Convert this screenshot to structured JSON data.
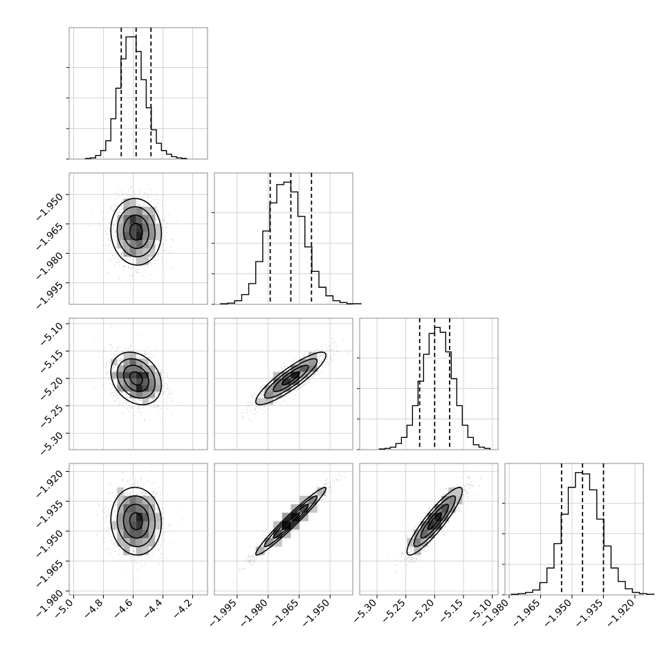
{
  "chart_data": {
    "type": "corner",
    "title": "",
    "colors": {
      "hist": "#000000",
      "contour": "#000000",
      "points": "#9a9a9a",
      "grid": "#c8c8c8"
    },
    "grid": true,
    "quantile_lines": "dashed",
    "parameters": [
      {
        "index": 0,
        "range": [
          -5.03,
          -4.1
        ],
        "ticks": [
          -5.0,
          -4.8,
          -4.6,
          -4.4,
          -4.2
        ],
        "tick_labels": [
          "−5.0",
          "−4.8",
          "−4.6",
          "−4.4",
          "−4.2"
        ],
        "mean": -4.58,
        "sd": 0.085,
        "quantiles": [
          -4.68,
          -4.58,
          -4.48
        ]
      },
      {
        "index": 1,
        "range": [
          -2.006,
          -1.939
        ],
        "ticks": [
          -1.995,
          -1.98,
          -1.965,
          -1.95
        ],
        "tick_labels": [
          "−1.995",
          "−1.980",
          "−1.965",
          "−1.950"
        ],
        "mean": -1.969,
        "sd": 0.0085,
        "quantiles": [
          -1.979,
          -1.969,
          -1.959
        ]
      },
      {
        "index": 2,
        "range": [
          -5.33,
          -5.09
        ],
        "ticks": [
          -5.3,
          -5.25,
          -5.2,
          -5.15,
          -5.1
        ],
        "tick_labels": [
          "−5.30",
          "−5.25",
          "−5.20",
          "−5.15",
          "−5.10"
        ],
        "mean": -5.2,
        "sd": 0.024,
        "quantiles": [
          -5.226,
          -5.2,
          -5.174
        ]
      },
      {
        "index": 3,
        "range": [
          -1.982,
          -1.916
        ],
        "ticks": [
          -1.98,
          -1.965,
          -1.95,
          -1.935,
          -1.92
        ],
        "tick_labels": [
          "−1.980",
          "−1.965",
          "−1.950",
          "−1.935",
          "−1.920"
        ],
        "mean": -1.945,
        "sd": 0.0085,
        "quantiles": [
          -1.955,
          -1.945,
          -1.935
        ]
      }
    ],
    "correlations": [
      {
        "pair": [
          1,
          0
        ],
        "r": -0.05
      },
      {
        "pair": [
          2,
          0
        ],
        "r": -0.25
      },
      {
        "pair": [
          2,
          1
        ],
        "r": 0.88
      },
      {
        "pair": [
          3,
          0
        ],
        "r": -0.05
      },
      {
        "pair": [
          3,
          1
        ],
        "r": 0.97
      },
      {
        "pair": [
          3,
          2
        ],
        "r": 0.9
      }
    ],
    "histograms": [
      {
        "param": 0,
        "counts": [
          0.5,
          1,
          3,
          7,
          15,
          33,
          58,
          82,
          100,
          100,
          88,
          65,
          42,
          24,
          13,
          7,
          4,
          2,
          1,
          0.5
        ]
      },
      {
        "param": 1,
        "counts": [
          0.5,
          1,
          3,
          8,
          17,
          35,
          60,
          83,
          98,
          100,
          92,
          72,
          47,
          27,
          14,
          7,
          3,
          1.5,
          0.5,
          0.5
        ]
      },
      {
        "param": 2,
        "counts": [
          0.5,
          1,
          2,
          5,
          10,
          20,
          36,
          56,
          78,
          95,
          100,
          96,
          80,
          58,
          36,
          20,
          10,
          4,
          2,
          1
        ]
      },
      {
        "param": 3,
        "counts": [
          0.5,
          1,
          2,
          4,
          10,
          22,
          42,
          66,
          88,
          100,
          99,
          86,
          62,
          40,
          22,
          11,
          5,
          2,
          1,
          0.5
        ]
      }
    ]
  }
}
